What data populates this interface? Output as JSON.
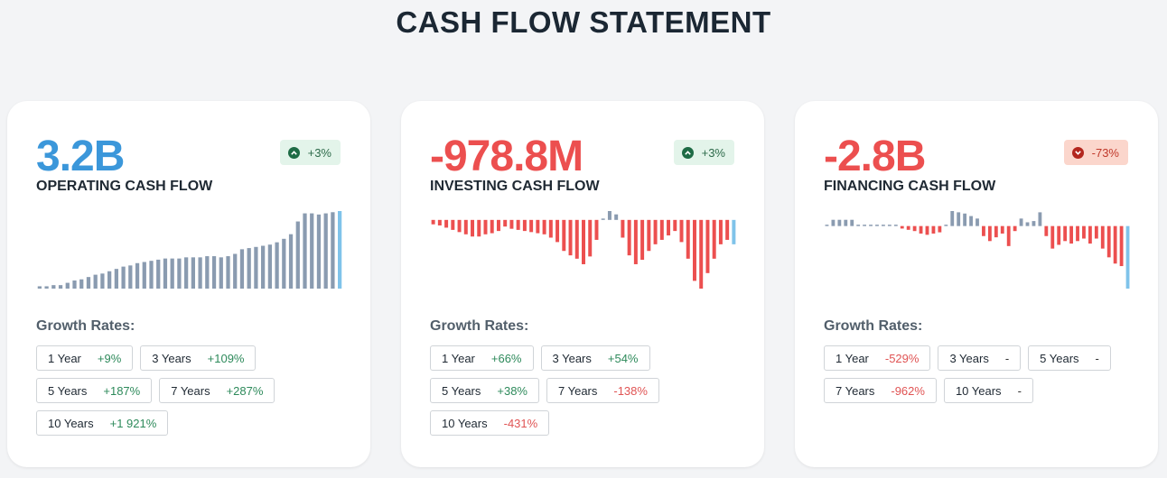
{
  "title": "CASH FLOW STATEMENT",
  "colors": {
    "positive_value": "#3b97da",
    "negative_value": "#ec4f4f",
    "bar_gray": "#8a9bb0",
    "bar_red": "#ec4f4f",
    "bar_latest": "#7fc3ea"
  },
  "cards": [
    {
      "value": "3.2B",
      "value_tone": "positive",
      "label": "OPERATING CASH FLOW",
      "badge": {
        "direction": "up",
        "icon": "chevron-up-icon",
        "text": "+3%"
      },
      "growth_title": "Growth Rates:",
      "growth": [
        {
          "period": "1 Year",
          "rate": "+9%",
          "tone": "pos"
        },
        {
          "period": "3 Years",
          "rate": "+109%",
          "tone": "pos"
        },
        {
          "period": "5 Years",
          "rate": "+187%",
          "tone": "pos"
        },
        {
          "period": "7 Years",
          "rate": "+287%",
          "tone": "pos"
        },
        {
          "period": "10 Years",
          "rate": "+1 921%",
          "tone": "pos"
        }
      ],
      "sparkline": [
        2,
        2,
        3,
        3,
        5,
        7,
        8,
        10,
        12,
        13,
        15,
        17,
        19,
        20,
        22,
        23,
        24,
        25,
        26,
        26,
        26,
        27,
        27,
        27,
        28,
        28,
        27,
        28,
        30,
        34,
        35,
        36,
        37,
        38,
        40,
        43,
        47,
        58,
        65,
        65,
        64,
        65,
        66,
        67
      ]
    },
    {
      "value": "-978.8M",
      "value_tone": "negative",
      "label": "INVESTING CASH FLOW",
      "badge": {
        "direction": "up",
        "icon": "chevron-up-icon",
        "text": "+3%"
      },
      "growth_title": "Growth Rates:",
      "growth": [
        {
          "period": "1 Year",
          "rate": "+66%",
          "tone": "pos"
        },
        {
          "period": "3 Years",
          "rate": "+54%",
          "tone": "pos"
        },
        {
          "period": "5 Years",
          "rate": "+38%",
          "tone": "pos"
        },
        {
          "period": "7 Years",
          "rate": "-138%",
          "tone": "neg"
        },
        {
          "period": "10 Years",
          "rate": "-431%",
          "tone": "neg"
        }
      ],
      "sparkline": [
        -4,
        -5,
        -7,
        -9,
        -11,
        -13,
        -15,
        -15,
        -13,
        -12,
        -10,
        -6,
        -8,
        -9,
        -10,
        -11,
        -12,
        -13,
        -16,
        -20,
        -28,
        -32,
        -35,
        -40,
        -33,
        -18,
        1,
        8,
        5,
        -16,
        -32,
        -40,
        -36,
        -28,
        -22,
        -18,
        -14,
        -10,
        -20,
        -35,
        -55,
        -62,
        -48,
        -35,
        -22,
        -18,
        -22
      ]
    },
    {
      "value": "-2.8B",
      "value_tone": "negative",
      "label": "FINANCING CASH FLOW",
      "badge": {
        "direction": "down",
        "icon": "chevron-down-icon",
        "text": "-73%"
      },
      "growth_title": "Growth Rates:",
      "growth": [
        {
          "period": "1 Year",
          "rate": "-529%",
          "tone": "neg"
        },
        {
          "period": "3 Years",
          "rate": "-",
          "tone": "neu"
        },
        {
          "period": "5 Years",
          "rate": "-",
          "tone": "neu"
        },
        {
          "period": "7 Years",
          "rate": "-962%",
          "tone": "neg"
        },
        {
          "period": "10 Years",
          "rate": "-",
          "tone": "neu"
        }
      ],
      "sparkline": [
        1,
        5,
        5,
        5,
        5,
        1,
        1,
        1,
        1,
        1,
        1,
        1,
        -2,
        -3,
        -4,
        -6,
        -7,
        -6,
        -5,
        0,
        12,
        11,
        10,
        8,
        6,
        -8,
        -12,
        -9,
        -6,
        -16,
        -4,
        6,
        3,
        4,
        11,
        -8,
        -18,
        -15,
        -12,
        -14,
        -12,
        -10,
        -14,
        -10,
        -18,
        -25,
        -30,
        -32,
        -50
      ]
    }
  ]
}
